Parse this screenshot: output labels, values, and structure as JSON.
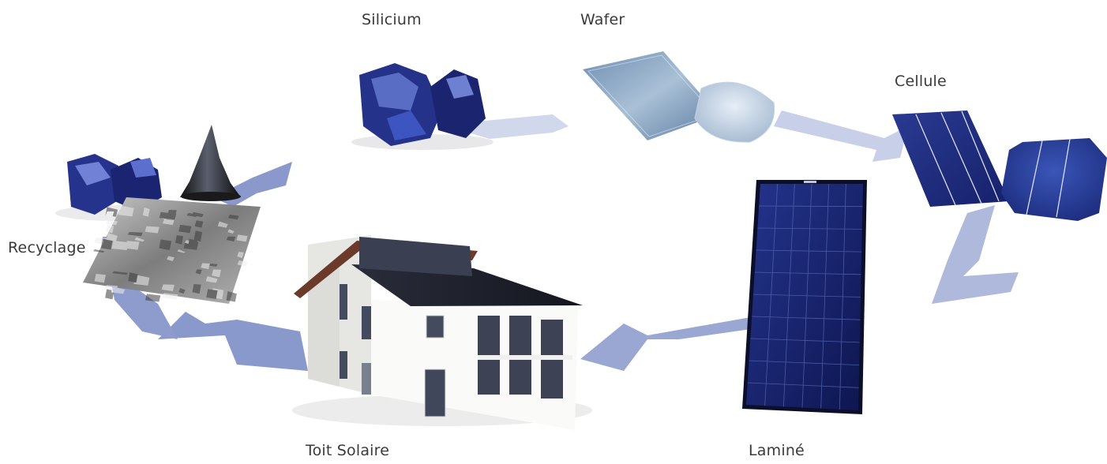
{
  "diagram": {
    "stages": [
      {
        "id": "silicium",
        "label": "Silicium"
      },
      {
        "id": "wafer",
        "label": "Wafer"
      },
      {
        "id": "cellule",
        "label": "Cellule"
      },
      {
        "id": "lamine",
        "label": "Laminé"
      },
      {
        "id": "toit",
        "label": "Toit Solaire"
      },
      {
        "id": "recyclage",
        "label": "Recyclage"
      }
    ]
  },
  "colors": {
    "arrow": "#aab6d8",
    "arrow_dark": "#7f8fc2",
    "silicon": "#2b3a8f",
    "wafer": "#8fa9c7",
    "cell": "#1f2f7e",
    "panel": "#13206a",
    "roof": "#1c1f2a",
    "wall": "#f4f4f2",
    "scrap": "#9a9a9a"
  }
}
